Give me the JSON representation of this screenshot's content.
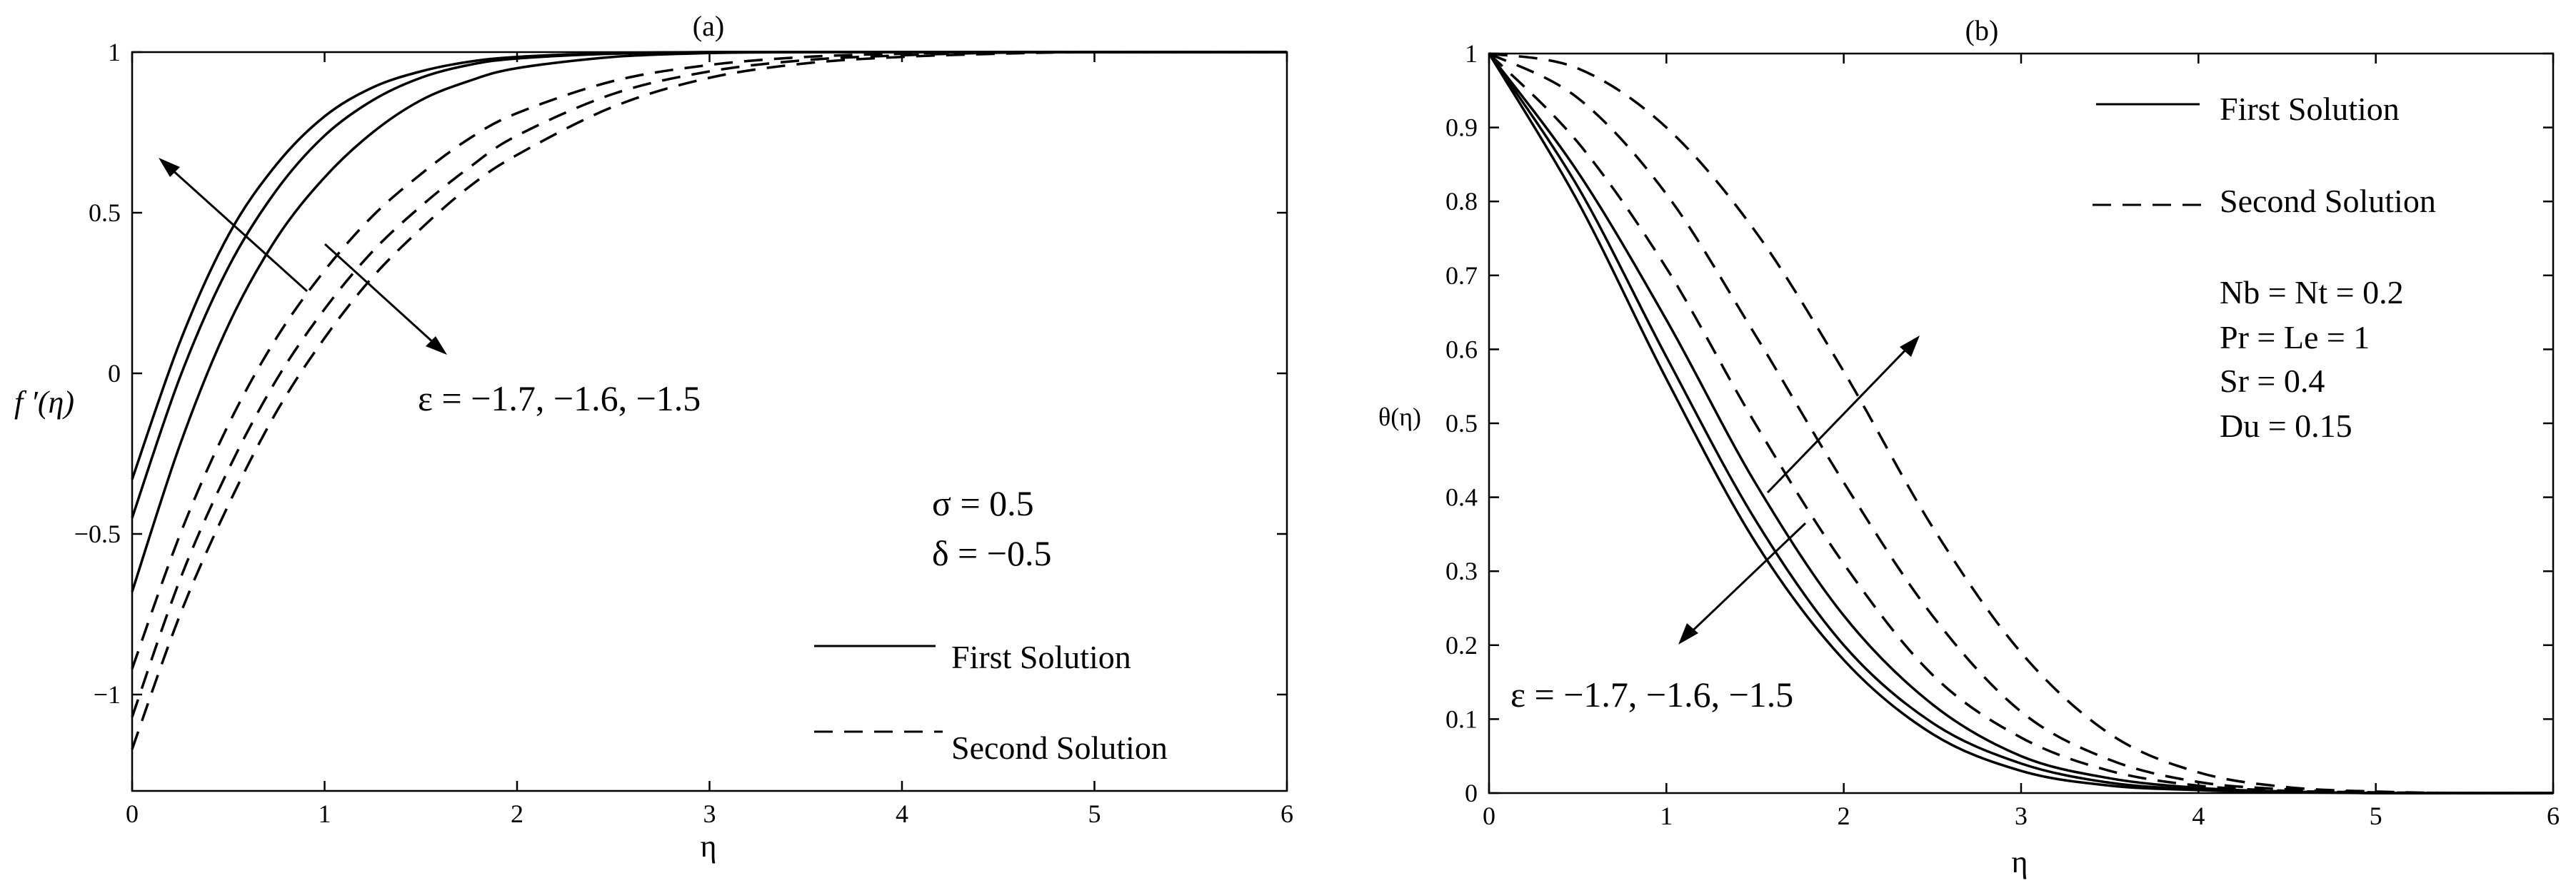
{
  "chart_data": [
    {
      "type": "line",
      "title": "(a)",
      "xlabel": "η",
      "ylabel": "f ′(η)",
      "xlim": [
        0,
        6
      ],
      "ylim": [
        -1.3,
        1
      ],
      "xticks": [
        0,
        1,
        2,
        3,
        4,
        5,
        6
      ],
      "yticks": [
        -1,
        -0.5,
        0,
        0.5,
        1
      ],
      "grid": false,
      "legend_position": "bottom-right",
      "legend": {
        "first": "First Solution",
        "second": "Second Solution"
      },
      "params": [
        "σ = 0.5",
        "δ = −0.5"
      ],
      "epsilon_label": "ε = −1.7, −1.6, −1.5",
      "series": [
        {
          "style": "solid",
          "x": [
            0,
            0.25,
            0.5,
            0.75,
            1,
            1.25,
            1.5,
            1.75,
            2,
            2.5,
            3,
            3.5,
            4,
            5,
            6
          ],
          "y": [
            -0.33,
            0.1,
            0.43,
            0.65,
            0.8,
            0.89,
            0.94,
            0.97,
            0.985,
            0.997,
            1,
            1,
            1,
            1,
            1
          ]
        },
        {
          "style": "solid",
          "x": [
            0,
            0.25,
            0.5,
            0.75,
            1,
            1.25,
            1.5,
            1.75,
            2,
            2.5,
            3,
            3.5,
            4,
            5,
            6
          ],
          "y": [
            -0.45,
            -0.01,
            0.33,
            0.57,
            0.74,
            0.85,
            0.92,
            0.96,
            0.98,
            0.995,
            1,
            1,
            1,
            1,
            1
          ]
        },
        {
          "style": "solid",
          "x": [
            0,
            0.25,
            0.5,
            0.75,
            1,
            1.25,
            1.5,
            1.75,
            2,
            2.5,
            3,
            3.5,
            4,
            5,
            6
          ],
          "y": [
            -0.68,
            -0.22,
            0.15,
            0.42,
            0.61,
            0.75,
            0.85,
            0.91,
            0.95,
            0.985,
            0.997,
            1,
            1,
            1,
            1
          ]
        },
        {
          "style": "dashed",
          "x": [
            0,
            0.25,
            0.5,
            0.75,
            1,
            1.25,
            1.5,
            1.75,
            2,
            2.5,
            3,
            3.5,
            4,
            4.5,
            5,
            6
          ],
          "y": [
            -0.92,
            -0.5,
            -0.16,
            0.11,
            0.32,
            0.49,
            0.62,
            0.73,
            0.81,
            0.91,
            0.96,
            0.985,
            0.995,
            1,
            1,
            1
          ]
        },
        {
          "style": "dashed",
          "x": [
            0,
            0.25,
            0.5,
            0.75,
            1,
            1.25,
            1.5,
            1.75,
            2,
            2.5,
            3,
            3.5,
            4,
            4.5,
            5,
            6
          ],
          "y": [
            -1.07,
            -0.64,
            -0.3,
            -0.02,
            0.2,
            0.38,
            0.52,
            0.64,
            0.74,
            0.87,
            0.94,
            0.975,
            0.99,
            0.998,
            1,
            1
          ]
        },
        {
          "style": "dashed",
          "x": [
            0,
            0.25,
            0.5,
            0.75,
            1,
            1.25,
            1.5,
            1.75,
            2,
            2.5,
            3,
            3.5,
            4,
            4.5,
            5,
            6
          ],
          "y": [
            -1.17,
            -0.75,
            -0.41,
            -0.12,
            0.11,
            0.3,
            0.45,
            0.58,
            0.68,
            0.83,
            0.92,
            0.965,
            0.985,
            0.995,
            1,
            1
          ]
        }
      ]
    },
    {
      "type": "line",
      "title": "(b)",
      "xlabel": "η",
      "ylabel": "θ(η)",
      "xlim": [
        0,
        6
      ],
      "ylim": [
        0,
        1
      ],
      "xticks": [
        0,
        1,
        2,
        3,
        4,
        5,
        6
      ],
      "yticks": [
        0,
        0.1,
        0.2,
        0.3,
        0.4,
        0.5,
        0.6,
        0.7,
        0.8,
        0.9,
        1
      ],
      "grid": false,
      "legend_position": "top-right",
      "legend": {
        "first": "First Solution",
        "second": "Second Solution"
      },
      "params": [
        "Nb = Nt = 0.2",
        "Pr = Le = 1",
        "Sr = 0.4",
        "Du = 0.15"
      ],
      "epsilon_label": "ε = −1.7, −1.6, −1.5",
      "series": [
        {
          "style": "solid",
          "x": [
            0,
            0.5,
            1,
            1.5,
            2,
            2.5,
            3,
            3.5,
            4,
            4.5,
            5,
            5.5,
            6
          ],
          "y": [
            1,
            0.8,
            0.56,
            0.34,
            0.18,
            0.08,
            0.03,
            0.01,
            0.004,
            0.001,
            0,
            0,
            0
          ]
        },
        {
          "style": "solid",
          "x": [
            0,
            0.5,
            1,
            1.5,
            2,
            2.5,
            3,
            3.5,
            4,
            4.5,
            5,
            5.5,
            6
          ],
          "y": [
            1,
            0.82,
            0.59,
            0.37,
            0.2,
            0.095,
            0.04,
            0.014,
            0.005,
            0.002,
            0,
            0,
            0
          ]
        },
        {
          "style": "solid",
          "x": [
            0,
            0.5,
            1,
            1.5,
            2,
            2.5,
            3,
            3.5,
            4,
            4.5,
            5,
            5.5,
            6
          ],
          "y": [
            1,
            0.84,
            0.64,
            0.42,
            0.24,
            0.12,
            0.05,
            0.02,
            0.007,
            0.002,
            0,
            0,
            0
          ]
        },
        {
          "style": "dashed",
          "x": [
            0,
            0.5,
            1,
            1.5,
            2,
            2.5,
            3,
            3.5,
            4,
            4.5,
            5,
            5.5,
            6
          ],
          "y": [
            1,
            0.88,
            0.71,
            0.5,
            0.31,
            0.16,
            0.075,
            0.03,
            0.01,
            0.003,
            0.001,
            0,
            0
          ]
        },
        {
          "style": "dashed",
          "x": [
            0,
            0.5,
            1,
            1.5,
            2,
            2.5,
            3,
            3.5,
            4,
            4.5,
            5,
            5.5,
            6
          ],
          "y": [
            1,
            0.94,
            0.81,
            0.62,
            0.42,
            0.24,
            0.11,
            0.045,
            0.015,
            0.005,
            0.001,
            0,
            0
          ]
        },
        {
          "style": "dashed",
          "x": [
            0,
            0.5,
            1,
            1.5,
            2,
            2.5,
            3,
            3.5,
            4,
            4.5,
            5,
            5.5,
            6
          ],
          "y": [
            1,
            0.98,
            0.9,
            0.76,
            0.57,
            0.36,
            0.19,
            0.08,
            0.028,
            0.008,
            0.002,
            0,
            0
          ]
        }
      ]
    }
  ]
}
